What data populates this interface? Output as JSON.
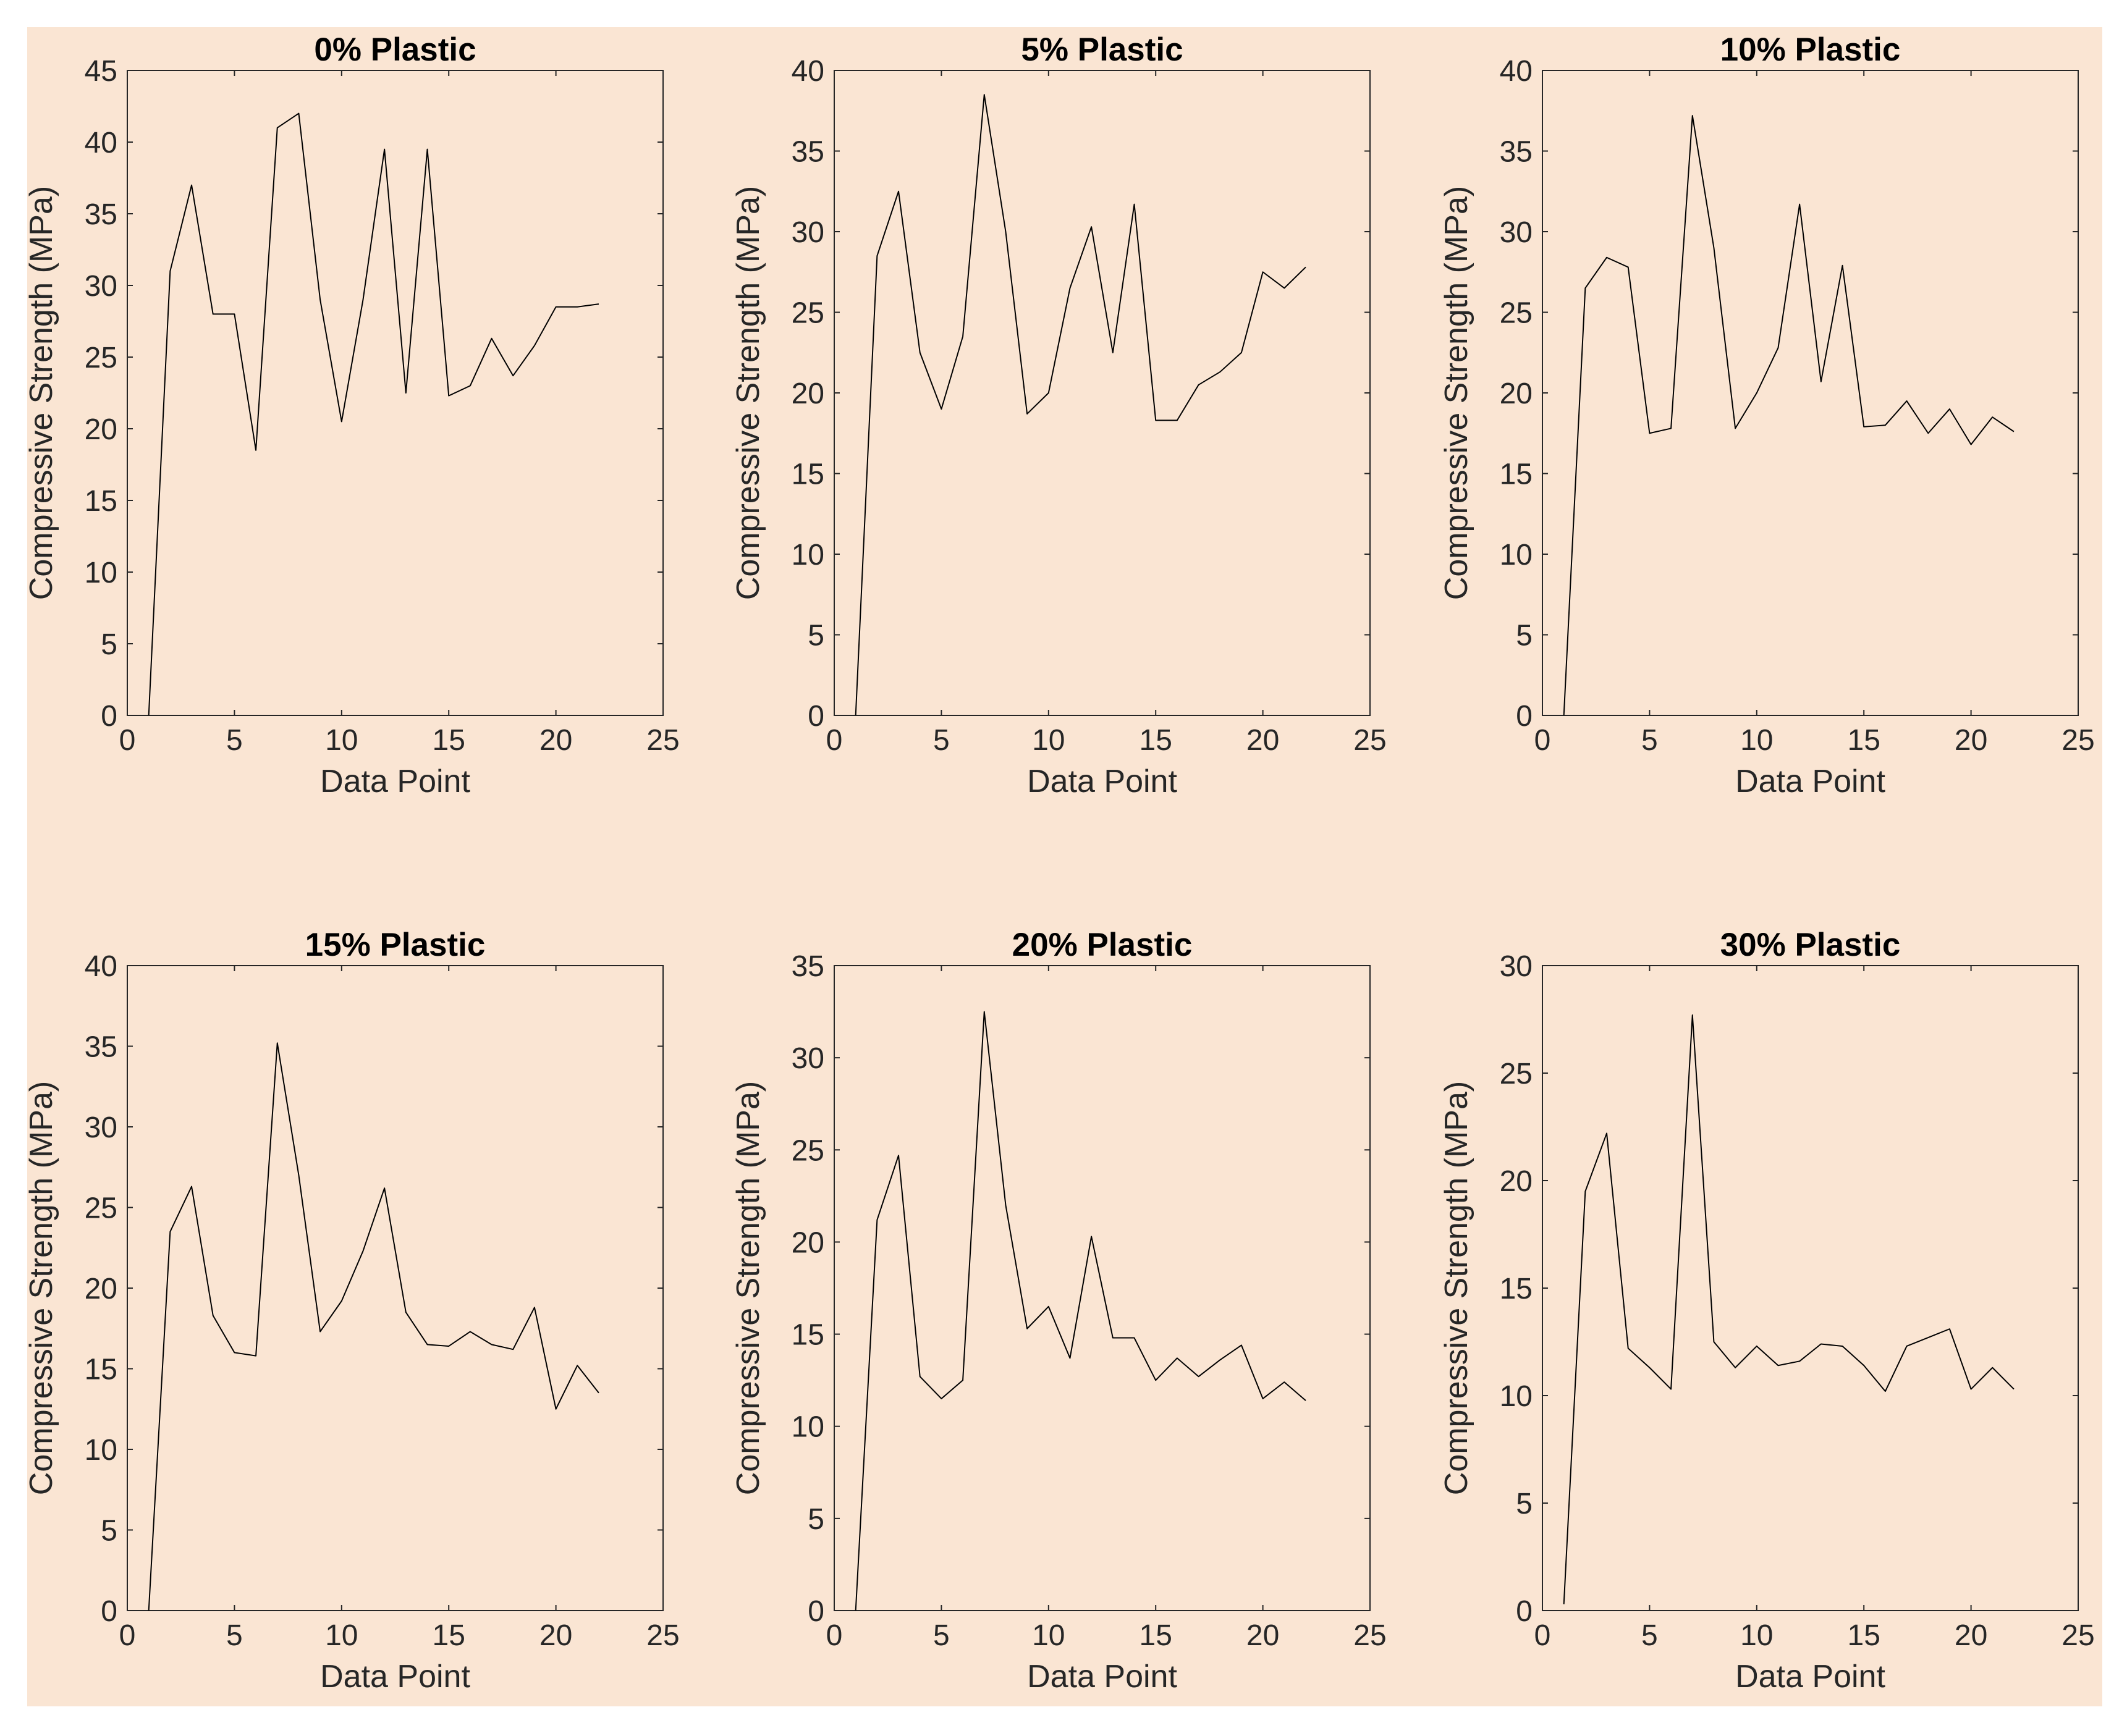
{
  "chart_data": [
    {
      "type": "line",
      "title": "0% Plastic",
      "xlabel": "Data Point",
      "ylabel": "Compressive Strength (MPa)",
      "x": [
        1,
        2,
        3,
        4,
        5,
        6,
        7,
        8,
        9,
        10,
        11,
        12,
        13,
        14,
        15,
        16,
        17,
        18,
        19,
        20,
        21,
        22
      ],
      "values": [
        0,
        31,
        37,
        28,
        28,
        18.5,
        41,
        42,
        29,
        20.5,
        29,
        39.5,
        22.5,
        39.5,
        22.3,
        23,
        26.3,
        23.7,
        25.8,
        28.5,
        28.5,
        28.7
      ],
      "color": "#000000",
      "xlim": [
        0,
        25
      ],
      "xticks": [
        0,
        5,
        10,
        15,
        20,
        25
      ],
      "ylim": [
        0,
        45
      ],
      "yticks": [
        0,
        5,
        10,
        15,
        20,
        25,
        30,
        35,
        40,
        45
      ]
    },
    {
      "type": "line",
      "title": "5% Plastic",
      "xlabel": "Data Point",
      "ylabel": "Compressive Strength (MPa)",
      "x": [
        1,
        2,
        3,
        4,
        5,
        6,
        7,
        8,
        9,
        10,
        11,
        12,
        13,
        14,
        15,
        16,
        17,
        18,
        19,
        20,
        21,
        22
      ],
      "values": [
        0,
        28.5,
        32.5,
        22.5,
        19,
        23.5,
        38.5,
        30,
        18.7,
        20,
        26.5,
        30.3,
        22.5,
        31.7,
        18.3,
        18.3,
        20.5,
        21.3,
        22.5,
        27.5,
        26.5,
        27.8
      ],
      "color": "#000000",
      "xlim": [
        0,
        25
      ],
      "xticks": [
        0,
        5,
        10,
        15,
        20,
        25
      ],
      "ylim": [
        0,
        40
      ],
      "yticks": [
        0,
        5,
        10,
        15,
        20,
        25,
        30,
        35,
        40
      ]
    },
    {
      "type": "line",
      "title": "10% Plastic",
      "xlabel": "Data Point",
      "ylabel": "Compressive Strength (MPa)",
      "x": [
        1,
        2,
        3,
        4,
        5,
        6,
        7,
        8,
        9,
        10,
        11,
        12,
        13,
        14,
        15,
        16,
        17,
        18,
        19,
        20,
        21,
        22
      ],
      "values": [
        0,
        26.5,
        28.4,
        27.8,
        17.5,
        17.8,
        37.2,
        29,
        17.8,
        20,
        22.8,
        31.7,
        20.7,
        27.9,
        17.9,
        18,
        19.5,
        17.5,
        19,
        16.8,
        18.5,
        17.6
      ],
      "color": "#000000",
      "xlim": [
        0,
        25
      ],
      "xticks": [
        0,
        5,
        10,
        15,
        20,
        25
      ],
      "ylim": [
        0,
        40
      ],
      "yticks": [
        0,
        5,
        10,
        15,
        20,
        25,
        30,
        35,
        40
      ]
    },
    {
      "type": "line",
      "title": "15% Plastic",
      "xlabel": "Data Point",
      "ylabel": "Compressive Strength (MPa)",
      "x": [
        1,
        2,
        3,
        4,
        5,
        6,
        7,
        8,
        9,
        10,
        11,
        12,
        13,
        14,
        15,
        16,
        17,
        18,
        19,
        20,
        21,
        22
      ],
      "values": [
        0,
        23.5,
        26.3,
        18.3,
        16,
        15.8,
        35.2,
        27,
        17.3,
        19.2,
        22.3,
        26.2,
        18.5,
        16.5,
        16.4,
        17.3,
        16.5,
        16.2,
        18.8,
        12.5,
        15.2,
        13.5
      ],
      "color": "#000000",
      "xlim": [
        0,
        25
      ],
      "xticks": [
        0,
        5,
        10,
        15,
        20,
        25
      ],
      "ylim": [
        0,
        40
      ],
      "yticks": [
        0,
        5,
        10,
        15,
        20,
        25,
        30,
        35,
        40
      ]
    },
    {
      "type": "line",
      "title": "20% Plastic",
      "xlabel": "Data Point",
      "ylabel": "Compressive Strength (MPa)",
      "x": [
        1,
        2,
        3,
        4,
        5,
        6,
        7,
        8,
        9,
        10,
        11,
        12,
        13,
        14,
        15,
        16,
        17,
        18,
        19,
        20,
        21,
        22
      ],
      "values": [
        0,
        21.2,
        24.7,
        12.7,
        11.5,
        12.5,
        32.5,
        22,
        15.3,
        16.5,
        13.7,
        20.3,
        14.8,
        14.8,
        12.5,
        13.7,
        12.7,
        13.6,
        14.4,
        11.5,
        12.4,
        11.4
      ],
      "color": "#000000",
      "xlim": [
        0,
        25
      ],
      "xticks": [
        0,
        5,
        10,
        15,
        20,
        25
      ],
      "ylim": [
        0,
        35
      ],
      "yticks": [
        0,
        5,
        10,
        15,
        20,
        25,
        30,
        35
      ]
    },
    {
      "type": "line",
      "title": "30% Plastic",
      "xlabel": "Data Point",
      "ylabel": "Compressive Strength (MPa)",
      "x": [
        1,
        2,
        3,
        4,
        5,
        6,
        7,
        8,
        9,
        10,
        11,
        12,
        13,
        14,
        15,
        16,
        17,
        18,
        19,
        20,
        21,
        22
      ],
      "values": [
        0.3,
        19.5,
        22.2,
        12.2,
        11.3,
        10.3,
        27.7,
        12.5,
        11.3,
        12.3,
        11.4,
        11.6,
        12.4,
        12.3,
        11.4,
        10.2,
        12.3,
        12.7,
        13.1,
        10.3,
        11.3,
        10.3
      ],
      "color": "#000000",
      "xlim": [
        0,
        25
      ],
      "xticks": [
        0,
        5,
        10,
        15,
        20,
        25
      ],
      "ylim": [
        0,
        30
      ],
      "yticks": [
        0,
        5,
        10,
        15,
        20,
        25,
        30
      ]
    }
  ]
}
